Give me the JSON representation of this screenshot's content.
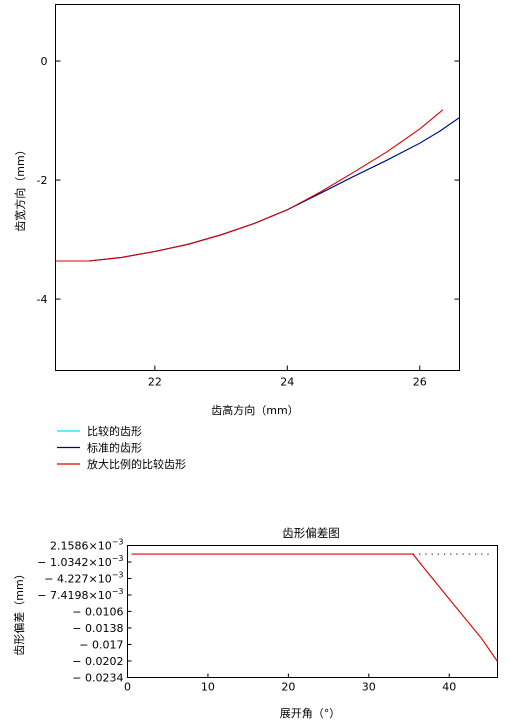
{
  "chart_data": [
    {
      "type": "line",
      "title": "",
      "xlabel": "齿高方向（mm）",
      "ylabel": "齿宽方向（mm）",
      "xlim": [
        20.5,
        26.6
      ],
      "ylim": [
        -5.2,
        0.95
      ],
      "x_ticks": [
        "22",
        "24",
        "26"
      ],
      "y_ticks": [
        "0",
        "-2",
        "-4"
      ],
      "grid": false,
      "legend_position": "below-left",
      "series": [
        {
          "name": "比较的齿形",
          "color": "#00e5ee",
          "points": [
            [
              20.5,
              -3.36
            ],
            [
              21.0,
              -3.36
            ],
            [
              21.5,
              -3.3
            ],
            [
              22.0,
              -3.2
            ],
            [
              22.5,
              -3.08
            ],
            [
              23.0,
              -2.92
            ],
            [
              23.5,
              -2.73
            ],
            [
              24.0,
              -2.5
            ],
            [
              24.5,
              -2.22
            ],
            [
              25.0,
              -1.94
            ],
            [
              25.5,
              -1.67
            ],
            [
              26.0,
              -1.38
            ],
            [
              26.3,
              -1.18
            ],
            [
              26.6,
              -0.95
            ]
          ]
        },
        {
          "name": "标准的齿形",
          "color": "#00008b",
          "points": [
            [
              20.5,
              -3.36
            ],
            [
              21.0,
              -3.36
            ],
            [
              21.5,
              -3.3
            ],
            [
              22.0,
              -3.2
            ],
            [
              22.5,
              -3.08
            ],
            [
              23.0,
              -2.92
            ],
            [
              23.5,
              -2.73
            ],
            [
              24.0,
              -2.5
            ],
            [
              24.5,
              -2.22
            ],
            [
              25.0,
              -1.94
            ],
            [
              25.5,
              -1.67
            ],
            [
              26.0,
              -1.38
            ],
            [
              26.3,
              -1.18
            ],
            [
              26.6,
              -0.95
            ]
          ]
        },
        {
          "name": "放大比例的比较齿形",
          "color": "#dd0000",
          "points": [
            [
              20.5,
              -3.36
            ],
            [
              21.0,
              -3.36
            ],
            [
              21.5,
              -3.3
            ],
            [
              22.0,
              -3.2
            ],
            [
              22.5,
              -3.08
            ],
            [
              23.0,
              -2.92
            ],
            [
              23.5,
              -2.73
            ],
            [
              24.0,
              -2.5
            ],
            [
              24.5,
              -2.2
            ],
            [
              25.0,
              -1.87
            ],
            [
              25.5,
              -1.53
            ],
            [
              26.0,
              -1.14
            ],
            [
              26.35,
              -0.82
            ]
          ]
        }
      ]
    },
    {
      "type": "line",
      "title": "齿形偏差图",
      "xlabel": "展开角（°）",
      "ylabel": "齿形偏差（mm）",
      "xlim": [
        0,
        46
      ],
      "ylim": [
        -0.0234,
        0.0021586
      ],
      "x_ticks": [
        "0",
        "10",
        "20",
        "30",
        "40"
      ],
      "y_ticks": [
        {
          "mantissa": "2.1586×10",
          "exp": "−3"
        },
        {
          "mantissa": "− 1.0342×10",
          "exp": "−3"
        },
        {
          "mantissa": "− 4.227×10",
          "exp": "−3"
        },
        {
          "mantissa": "− 7.4198×10",
          "exp": "−3"
        },
        {
          "mantissa": "− 0.0106",
          "exp": ""
        },
        {
          "mantissa": "− 0.0138",
          "exp": ""
        },
        {
          "mantissa": "− 0.017",
          "exp": ""
        },
        {
          "mantissa": "− 0.0202",
          "exp": ""
        },
        {
          "mantissa": "− 0.0234",
          "exp": ""
        }
      ],
      "y_tick_values": [
        0.0021586,
        -0.0010342,
        -0.004227,
        -0.0074198,
        -0.0106,
        -0.0138,
        -0.017,
        -0.0202,
        -0.0234
      ],
      "grid": false,
      "series": [
        {
          "name": "",
          "color": "#dd0000",
          "points": [
            [
              0.5,
              0.0005
            ],
            [
              35.5,
              0.0005
            ],
            [
              36.5,
              -0.0015
            ],
            [
              40,
              -0.0082
            ],
            [
              44,
              -0.0158
            ],
            [
              46,
              -0.0203
            ]
          ]
        },
        {
          "name": "",
          "color": "#333333",
          "style": "dotted",
          "points": [
            [
              35.5,
              0.0005
            ],
            [
              45,
              0.0005
            ]
          ]
        }
      ]
    }
  ]
}
